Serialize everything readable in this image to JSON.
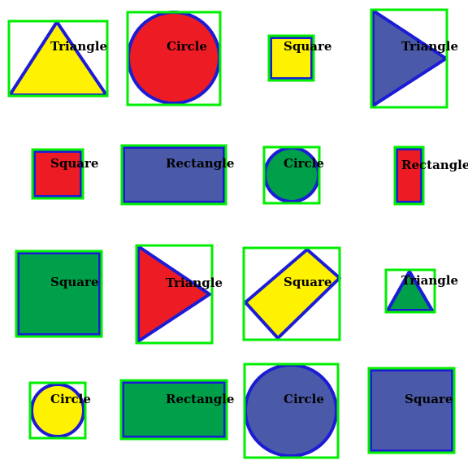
{
  "colors": {
    "background": "#ffffff",
    "bbox": "#00ee00",
    "outline": "#1c1cd6",
    "yellow": "#fff200",
    "red": "#ed1c24",
    "blue": "#4b5aa8",
    "green": "#00a04b"
  },
  "shapes": [
    {
      "label": "Triangle",
      "shape": "triangle-up",
      "fill": "yellow"
    },
    {
      "label": "Circle",
      "shape": "circle",
      "fill": "red"
    },
    {
      "label": "Square",
      "shape": "square",
      "fill": "yellow"
    },
    {
      "label": "Triangle",
      "shape": "triangle-right",
      "fill": "blue"
    },
    {
      "label": "Square",
      "shape": "square",
      "fill": "red"
    },
    {
      "label": "Rectangle",
      "shape": "rectangle",
      "fill": "blue"
    },
    {
      "label": "Circle",
      "shape": "circle",
      "fill": "green"
    },
    {
      "label": "Rectangle",
      "shape": "rectangle",
      "fill": "red"
    },
    {
      "label": "Square",
      "shape": "square",
      "fill": "green"
    },
    {
      "label": "Triangle",
      "shape": "triangle-right",
      "fill": "red"
    },
    {
      "label": "Square",
      "shape": "rotated-square",
      "fill": "yellow"
    },
    {
      "label": "Triangle",
      "shape": "triangle-up",
      "fill": "green"
    },
    {
      "label": "Circle",
      "shape": "circle",
      "fill": "yellow"
    },
    {
      "label": "Rectangle",
      "shape": "rectangle",
      "fill": "green"
    },
    {
      "label": "Circle",
      "shape": "circle",
      "fill": "blue"
    },
    {
      "label": "Square",
      "shape": "square",
      "fill": "blue"
    }
  ]
}
